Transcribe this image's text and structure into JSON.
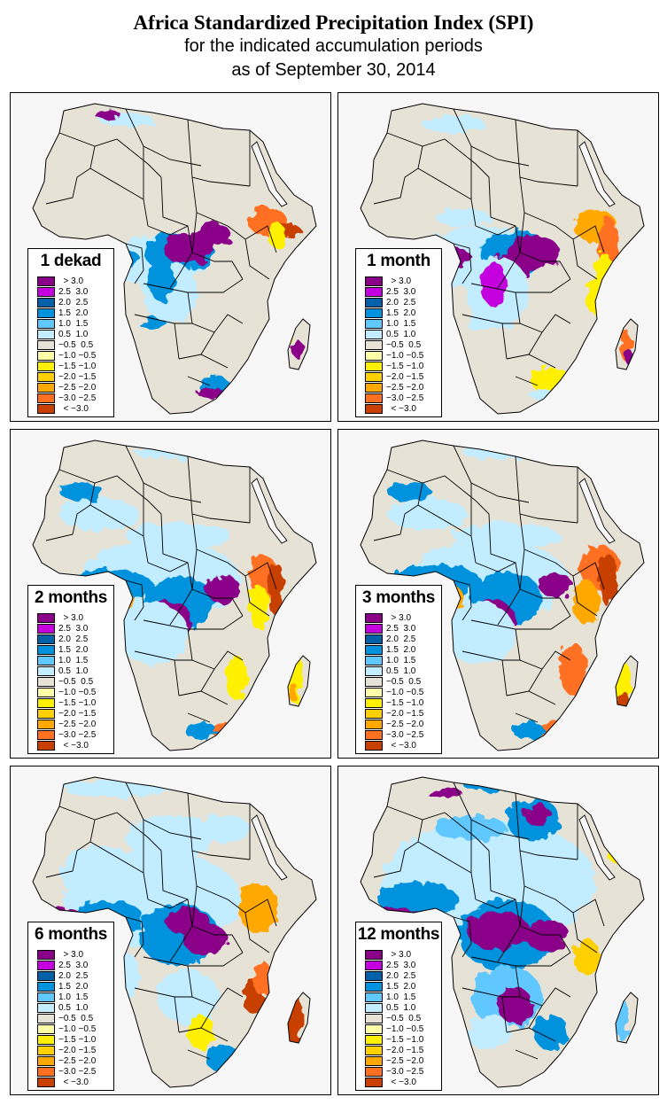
{
  "title": {
    "line1": "Africa Standardized Precipitation Index (SPI)",
    "line2": "for the indicated accumulation periods",
    "line3": "as of September 30, 2014"
  },
  "legend_classes": [
    {
      "label": "  > 3.0",
      "color": "#8b0089"
    },
    {
      "label": "2.5  3.0",
      "color": "#c400de"
    },
    {
      "label": "2.0  2.5",
      "color": "#0060a8"
    },
    {
      "label": "1.5  2.0",
      "color": "#0092dc"
    },
    {
      "label": "1.0  1.5",
      "color": "#60c8ff"
    },
    {
      "label": "0.5  1.0",
      "color": "#c2ecff"
    },
    {
      "label": "−0.5  0.5",
      "color": "#e6e2d6"
    },
    {
      "label": "−1.0 −0.5",
      "color": "#ffffa8"
    },
    {
      "label": "−1.5 −1.0",
      "color": "#fff000"
    },
    {
      "label": "−2.0 −1.5",
      "color": "#ffd000"
    },
    {
      "label": "−2.5 −2.0",
      "color": "#ffa800"
    },
    {
      "label": "−3.0 −2.5",
      "color": "#ff7020"
    },
    {
      "label": "  < −3.0",
      "color": "#c84000"
    }
  ],
  "colors": {
    "ocean": "#f7f7f7",
    "land": "#e6e2d6",
    "border": "#000000"
  },
  "panels": [
    {
      "label": "1 dekad",
      "profile": "dekad"
    },
    {
      "label": "1 month",
      "profile": "month1"
    },
    {
      "label": "2 months",
      "profile": "month2"
    },
    {
      "label": "3 months",
      "profile": "month3"
    },
    {
      "label": "6 months",
      "profile": "month6"
    },
    {
      "label": "12 months",
      "profile": "month12"
    }
  ]
}
